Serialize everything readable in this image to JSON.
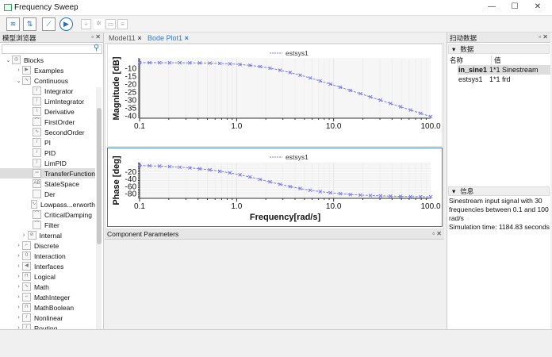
{
  "window": {
    "title": "Frequency Sweep",
    "minimize": "—",
    "maximize": "☐",
    "close": "✕"
  },
  "toolbar": {
    "icons": [
      "waveform-icon",
      "settings-edit-icon",
      "sweep-icon",
      "run-icon",
      "new-file-icon",
      "gear-icon",
      "layout-icon",
      "document-icon"
    ],
    "glyphs": [
      "≋",
      "⇅",
      "⟋",
      "▶",
      "+",
      "✲",
      "▭",
      "≡"
    ]
  },
  "left_panel": {
    "title": "模型浏览器",
    "float": "▫",
    "close": "✕",
    "search_placeholder": "",
    "items": [
      {
        "label": "Blocks",
        "level": 0,
        "chev": "⌄",
        "icon": "◎"
      },
      {
        "label": "Examples",
        "level": 1,
        "chev": "›",
        "icon": "▶"
      },
      {
        "label": "Continuous",
        "level": 1,
        "chev": "⌄",
        "icon": "∿"
      },
      {
        "label": "Integrator",
        "level": 2,
        "chev": "",
        "icon": "/"
      },
      {
        "label": "LimIntegrator",
        "level": 2,
        "chev": "",
        "icon": "/"
      },
      {
        "label": "Derivative",
        "level": 2,
        "chev": "",
        "icon": "\\"
      },
      {
        "label": "FirstOrder",
        "level": 2,
        "chev": "",
        "icon": "⌒"
      },
      {
        "label": "SecondOrder",
        "level": 2,
        "chev": "",
        "icon": "∿"
      },
      {
        "label": "PI",
        "level": 2,
        "chev": "",
        "icon": "/"
      },
      {
        "label": "PID",
        "level": 2,
        "chev": "",
        "icon": "/"
      },
      {
        "label": "LimPID",
        "level": 2,
        "chev": "",
        "icon": "/"
      },
      {
        "label": "TransferFunction",
        "level": 2,
        "chev": "",
        "icon": "═",
        "selected": true
      },
      {
        "label": "StateSpace",
        "level": 2,
        "chev": "",
        "icon": "AB"
      },
      {
        "label": "Der",
        "level": 2,
        "chev": "",
        "icon": ""
      },
      {
        "label": "Lowpass...erworth",
        "level": 2,
        "chev": "",
        "icon": "∿"
      },
      {
        "label": "CriticalDamping",
        "level": 2,
        "chev": "",
        "icon": "⌒"
      },
      {
        "label": "Filter",
        "level": 2,
        "chev": "",
        "icon": "⌒"
      },
      {
        "label": "Internal",
        "level": 1.5,
        "chev": "›",
        "icon": "⊘"
      },
      {
        "label": "Discrete",
        "level": 1,
        "chev": "›",
        "icon": "⌐"
      },
      {
        "label": "Interaction",
        "level": 1,
        "chev": "›",
        "icon": "0"
      },
      {
        "label": "Interfaces",
        "level": 1,
        "chev": "›",
        "icon": "◀"
      },
      {
        "label": "Logical",
        "level": 1,
        "chev": "›",
        "icon": "⊓"
      },
      {
        "label": "Math",
        "level": 1,
        "chev": "›",
        "icon": "∿"
      },
      {
        "label": "MathInteger",
        "level": 1,
        "chev": "›",
        "icon": "⌐"
      },
      {
        "label": "MathBoolean",
        "level": 1,
        "chev": "›",
        "icon": "⊓"
      },
      {
        "label": "Nonlinear",
        "level": 1,
        "chev": "›",
        "icon": "/"
      },
      {
        "label": "Routing",
        "level": 1,
        "chev": "›",
        "icon": "/"
      }
    ]
  },
  "tabs": [
    {
      "label": "Model11",
      "close": "×"
    },
    {
      "label": "Bode Plot1",
      "close": "×",
      "active": true
    }
  ],
  "component_parameters": {
    "title": "Component Parameters",
    "float": "▫",
    "close": "✕"
  },
  "right_panel": {
    "title": "扫动数据",
    "float": "▫",
    "close": "✕",
    "data_section": "数据",
    "col_name": "名称",
    "col_value": "值",
    "rows": [
      {
        "name": "in_sine1",
        "value": "1*1 Sinestream",
        "selected": true
      },
      {
        "name": "estsys1",
        "value": "1*1 frd"
      }
    ],
    "info_section": "信息",
    "info_lines": [
      "Sinestream input signal with 30 frequencies between 0.1 and 100 rad/s",
      "Simulation time: 1184.83 seconds"
    ]
  },
  "chart_data": [
    {
      "type": "line",
      "ylabel": "Magnitude [dB]",
      "xlabel": "",
      "xscale": "log",
      "xlim": [
        0.1,
        100
      ],
      "ylim": [
        -41.5,
        -4
      ],
      "xticks": [
        "0.1",
        "1.0",
        "10.0",
        "100.0"
      ],
      "yticks": [
        -10,
        -15,
        -20,
        -25,
        -30,
        -35,
        -40
      ],
      "grid": true,
      "legend": "top-center",
      "series": [
        {
          "name": "estsys1",
          "color": "#7b7bf0",
          "marker": "x",
          "x": [
            0.1,
            0.1269,
            0.161,
            0.2043,
            0.2593,
            0.329,
            0.4175,
            0.5298,
            0.6723,
            0.8532,
            1.0826,
            1.3738,
            1.7433,
            2.2122,
            2.8072,
            3.5622,
            4.5204,
            5.7362,
            7.279,
            9.2367,
            11.721,
            14.874,
            18.874,
            23.95,
            30.392,
            38.566,
            48.939,
            62.102,
            78.805,
            100
          ],
          "y": [
            -6.51,
            -6.52,
            -6.53,
            -6.55,
            -6.57,
            -6.62,
            -6.69,
            -6.79,
            -6.97,
            -7.23,
            -7.62,
            -8.18,
            -8.96,
            -9.97,
            -11.23,
            -12.7,
            -14.36,
            -16.15,
            -18.04,
            -19.99,
            -21.98,
            -24.0,
            -26.04,
            -28.1,
            -30.16,
            -32.22,
            -34.28,
            -36.34,
            -38.41,
            -40.48
          ]
        }
      ]
    },
    {
      "type": "line",
      "ylabel": "Phase [deg]",
      "xlabel": "Frequency[rad/s]",
      "xscale": "log",
      "xlim": [
        0.1,
        100
      ],
      "ylim": [
        -93,
        5
      ],
      "xticks": [
        "0.1",
        "1.0",
        "10.0",
        "100.0"
      ],
      "yticks": [
        -20,
        -40,
        -60,
        -80
      ],
      "grid": true,
      "legend": "top-center",
      "series": [
        {
          "name": "estsys1",
          "color": "#7b7bf0",
          "marker": "x",
          "x": [
            0.1,
            0.1269,
            0.161,
            0.2043,
            0.2593,
            0.329,
            0.4175,
            0.5298,
            0.6723,
            0.8532,
            1.0826,
            1.3738,
            1.7433,
            2.2122,
            2.8072,
            3.5622,
            4.5204,
            5.7362,
            7.279,
            9.2367,
            11.721,
            14.874,
            18.874,
            23.95,
            30.392,
            38.566,
            48.939,
            62.102,
            78.805,
            100
          ],
          "y": [
            -2.9,
            -3.6,
            -4.6,
            -5.8,
            -7.4,
            -9.3,
            -11.8,
            -14.8,
            -18.6,
            -23.1,
            -28.4,
            -34.5,
            -41.1,
            -47.9,
            -54.5,
            -60.7,
            -66.1,
            -70.8,
            -74.6,
            -77.8,
            -80.3,
            -82.5,
            -84.0,
            -85.2,
            -86.2,
            -87.0,
            -87.7,
            -88.2,
            -88.5,
            -88.9
          ]
        }
      ]
    }
  ]
}
